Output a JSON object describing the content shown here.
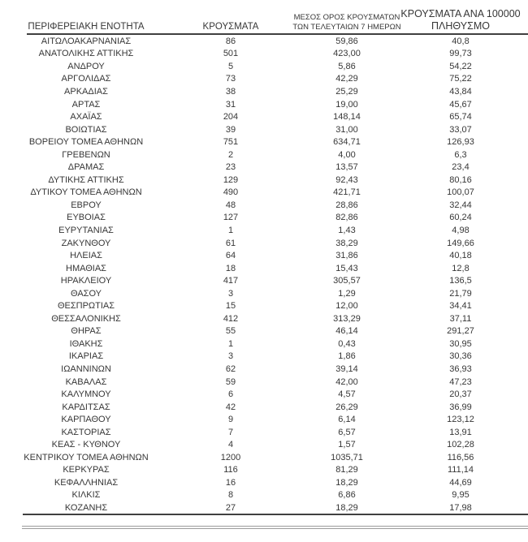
{
  "page": {
    "background_color": "#ffffff",
    "text_color": "#373737",
    "rule_color": "#404040",
    "muted_rule_color": "#9b9b9b"
  },
  "table": {
    "header": {
      "col1": "ΠΕΡΙΦΕΡΕΙΑΚΗ ΕΝΟΤΗΤΑ",
      "col2": "ΚΡΟΥΣΜΑΤΑ",
      "col3_line1": "ΜΕΣΟΣ ΟΡΟΣ ΚΡΟΥΣΜΑΤΩΝ",
      "col3_line2": "ΤΩΝ ΤΕΛΕΥΤΑΙΩΝ 7 ΗΜΕΡΩΝ",
      "col4_line1": "ΚΡΟΥΣΜΑΤΑ ΑΝΑ 100000",
      "col4_line2": "ΠΛΗΘΥΣΜΟ"
    },
    "rows": [
      [
        "ΑΙΤΩΛΟΑΚΑΡΝΑΝΙΑΣ",
        "86",
        "59,86",
        "40,8"
      ],
      [
        "ΑΝΑΤΟΛΙΚΗΣ ΑΤΤΙΚΗΣ",
        "501",
        "423,00",
        "99,73"
      ],
      [
        "ΑΝΔΡΟΥ",
        "5",
        "5,86",
        "54,22"
      ],
      [
        "ΑΡΓΟΛΙΔΑΣ",
        "73",
        "42,29",
        "75,22"
      ],
      [
        "ΑΡΚΑΔΙΑΣ",
        "38",
        "25,29",
        "43,84"
      ],
      [
        "ΑΡΤΑΣ",
        "31",
        "19,00",
        "45,67"
      ],
      [
        "ΑΧΑΪΑΣ",
        "204",
        "148,14",
        "65,74"
      ],
      [
        "ΒΟΙΩΤΙΑΣ",
        "39",
        "31,00",
        "33,07"
      ],
      [
        "ΒΟΡΕΙΟΥ ΤΟΜΕΑ ΑΘΗΝΩΝ",
        "751",
        "634,71",
        "126,93"
      ],
      [
        "ΓΡΕΒΕΝΩΝ",
        "2",
        "4,00",
        "6,3"
      ],
      [
        "ΔΡΑΜΑΣ",
        "23",
        "13,57",
        "23,4"
      ],
      [
        "ΔΥΤΙΚΗΣ ΑΤΤΙΚΗΣ",
        "129",
        "92,43",
        "80,16"
      ],
      [
        "ΔΥΤΙΚΟΥ ΤΟΜΕΑ ΑΘΗΝΩΝ",
        "490",
        "421,71",
        "100,07"
      ],
      [
        "ΕΒΡΟΥ",
        "48",
        "28,86",
        "32,44"
      ],
      [
        "ΕΥΒΟΙΑΣ",
        "127",
        "82,86",
        "60,24"
      ],
      [
        "ΕΥΡΥΤΑΝΙΑΣ",
        "1",
        "1,43",
        "4,98"
      ],
      [
        "ΖΑΚΥΝΘΟΥ",
        "61",
        "38,29",
        "149,66"
      ],
      [
        "ΗΛΕΙΑΣ",
        "64",
        "31,86",
        "40,18"
      ],
      [
        "ΗΜΑΘΙΑΣ",
        "18",
        "15,43",
        "12,8"
      ],
      [
        "ΗΡΑΚΛΕΙΟΥ",
        "417",
        "305,57",
        "136,5"
      ],
      [
        "ΘΑΣΟΥ",
        "3",
        "1,29",
        "21,79"
      ],
      [
        "ΘΕΣΠΡΩΤΙΑΣ",
        "15",
        "12,00",
        "34,41"
      ],
      [
        "ΘΕΣΣΑΛΟΝΙΚΗΣ",
        "412",
        "313,29",
        "37,11"
      ],
      [
        "ΘΗΡΑΣ",
        "55",
        "46,14",
        "291,27"
      ],
      [
        "ΙΘΑΚΗΣ",
        "1",
        "0,43",
        "30,95"
      ],
      [
        "ΙΚΑΡΙΑΣ",
        "3",
        "1,86",
        "30,36"
      ],
      [
        "ΙΩΑΝΝΙΝΩΝ",
        "62",
        "39,14",
        "36,93"
      ],
      [
        "ΚΑΒΑΛΑΣ",
        "59",
        "42,00",
        "47,23"
      ],
      [
        "ΚΑΛΥΜΝΟΥ",
        "6",
        "4,57",
        "20,37"
      ],
      [
        "ΚΑΡΔΙΤΣΑΣ",
        "42",
        "26,29",
        "36,99"
      ],
      [
        "ΚΑΡΠΑΘΟΥ",
        "9",
        "6,14",
        "123,12"
      ],
      [
        "ΚΑΣΤΟΡΙΑΣ",
        "7",
        "6,57",
        "13,91"
      ],
      [
        "ΚΕΑΣ - ΚΥΘΝΟΥ",
        "4",
        "1,57",
        "102,28"
      ],
      [
        "ΚΕΝΤΡΙΚΟΥ ΤΟΜΕΑ ΑΘΗΝΩΝ",
        "1200",
        "1035,71",
        "116,56"
      ],
      [
        "ΚΕΡΚΥΡΑΣ",
        "116",
        "81,29",
        "111,14"
      ],
      [
        "ΚΕΦΑΛΛΗΝΙΑΣ",
        "16",
        "18,29",
        "44,69"
      ],
      [
        "ΚΙΛΚΙΣ",
        "8",
        "6,86",
        "9,95"
      ],
      [
        "ΚΟΖΑΝΗΣ",
        "27",
        "18,29",
        "17,98"
      ]
    ]
  }
}
